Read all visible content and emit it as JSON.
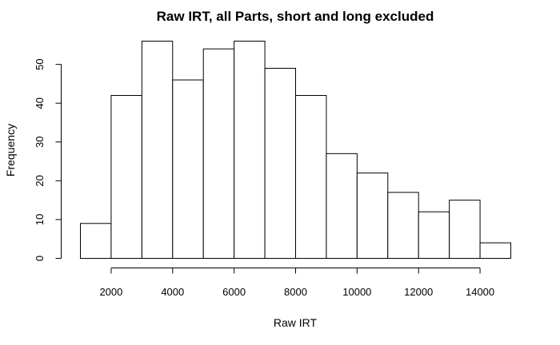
{
  "chart_data": {
    "type": "bar",
    "title": "Raw IRT, all Parts, short and long excluded",
    "xlabel": "Raw IRT",
    "ylabel": "Frequency",
    "bin_edges": [
      1000,
      2000,
      3000,
      4000,
      5000,
      6000,
      7000,
      8000,
      9000,
      10000,
      11000,
      12000,
      13000,
      14000,
      15000
    ],
    "values": [
      9,
      42,
      56,
      46,
      54,
      56,
      49,
      42,
      27,
      22,
      17,
      12,
      15,
      4
    ],
    "xlim": [
      1000,
      15000
    ],
    "ylim": [
      0,
      56
    ],
    "x_ticks": [
      2000,
      4000,
      6000,
      8000,
      10000,
      12000,
      14000
    ],
    "y_ticks": [
      0,
      10,
      20,
      30,
      40,
      50
    ],
    "grid": false,
    "bar_fill": "#ffffff",
    "bar_stroke": "#000000"
  }
}
